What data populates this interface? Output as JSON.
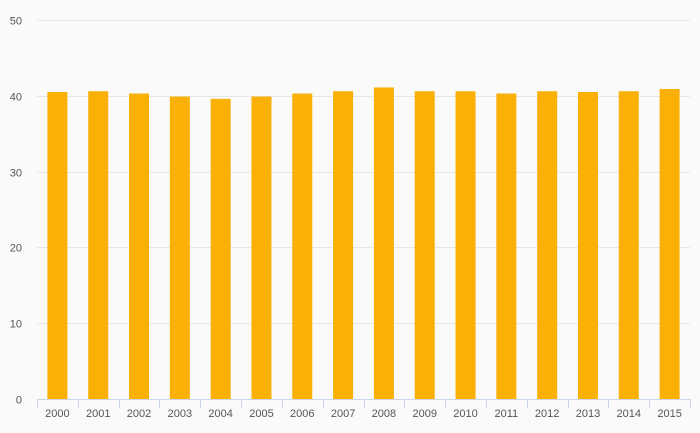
{
  "chart_data": {
    "type": "bar",
    "categories": [
      "2000",
      "2001",
      "2002",
      "2003",
      "2004",
      "2005",
      "2006",
      "2007",
      "2008",
      "2009",
      "2010",
      "2011",
      "2012",
      "2013",
      "2014",
      "2015"
    ],
    "values": [
      40.5,
      40.6,
      40.3,
      39.9,
      39.6,
      39.9,
      40.3,
      40.6,
      41.1,
      40.6,
      40.6,
      40.3,
      40.6,
      40.5,
      40.6,
      40.9
    ],
    "ylim": [
      0,
      50
    ],
    "yticks": [
      0,
      10,
      20,
      30,
      40,
      50
    ],
    "title": "",
    "xlabel": "",
    "ylabel": "",
    "grid": true,
    "legend": "none",
    "colors": {
      "bar": "#FAB005",
      "grid": "#E6E6E6",
      "axis": "#CCD6EB",
      "label": "#555555"
    }
  }
}
